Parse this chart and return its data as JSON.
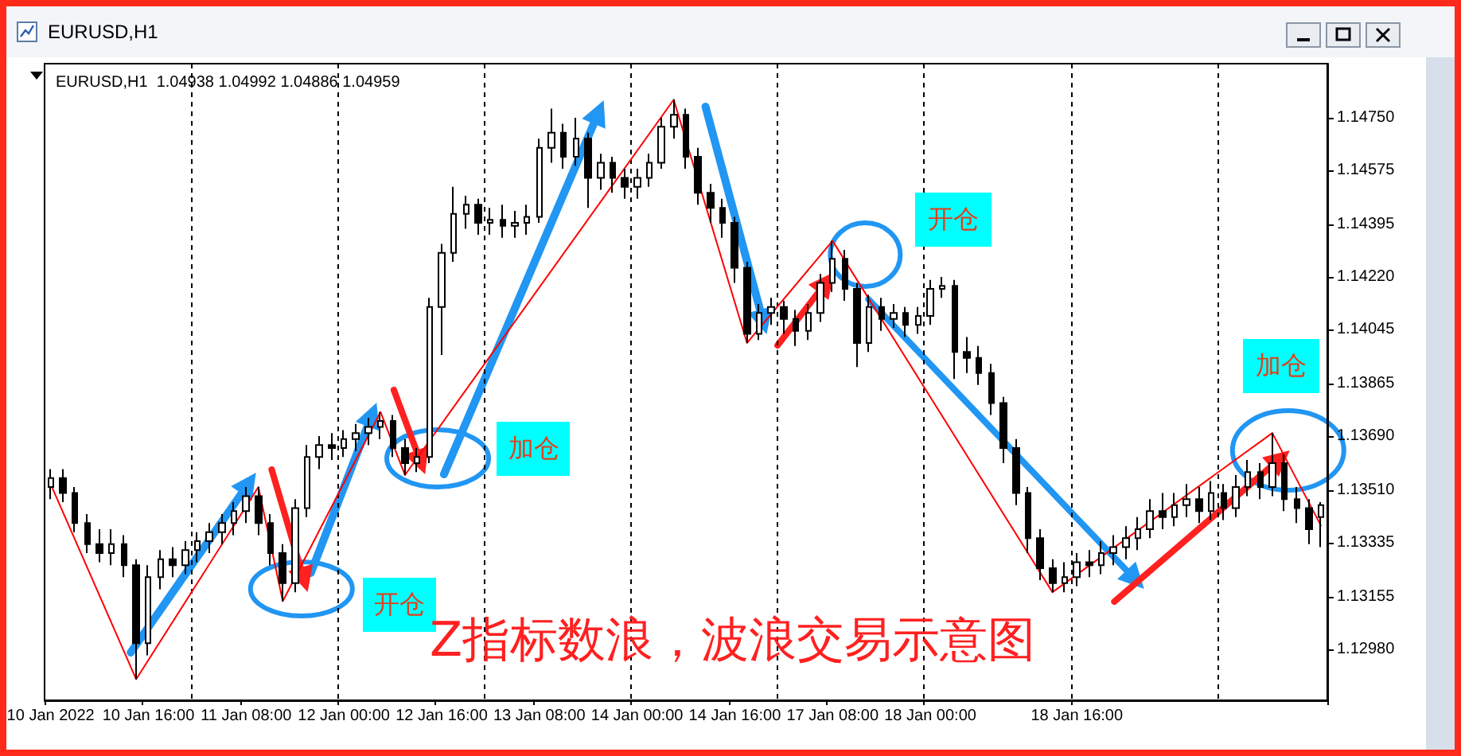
{
  "chart_data": {
    "type": "candlestick",
    "title": "EURUSD,H1",
    "subtitle": "EURUSD,H1  1.04938 1.04992 1.04886 1.04959",
    "categories": [
      "10 Jan 2022",
      null,
      null,
      null,
      null,
      null,
      null,
      null,
      "10 Jan 16:00",
      null,
      null,
      null,
      null,
      null,
      null,
      null,
      "11 Jan 08:00",
      null,
      null,
      null,
      null,
      null,
      null,
      null,
      "12 Jan 00:00",
      null,
      null,
      null,
      null,
      null,
      null,
      null,
      "12 Jan 16:00",
      null,
      null,
      null,
      null,
      null,
      null,
      null,
      "13 Jan 08:00",
      null,
      null,
      null,
      null,
      null,
      null,
      null,
      "14 Jan 00:00",
      null,
      null,
      null,
      null,
      null,
      null,
      null,
      "14 Jan 16:00",
      null,
      null,
      null,
      null,
      null,
      null,
      null,
      "17 Jan 08:00",
      null,
      null,
      null,
      null,
      null,
      null,
      null,
      "18 Jan 00:00",
      null,
      null,
      null,
      null,
      null,
      null,
      null,
      null,
      null,
      null,
      null,
      "18 Jan 16:00",
      null,
      null,
      null,
      null,
      null,
      null,
      null,
      null,
      null,
      null,
      null,
      null,
      null,
      null,
      null,
      null,
      null,
      null,
      null,
      null
    ],
    "ohlc": [
      [
        1.1352,
        1.1358,
        1.1348,
        1.1355
      ],
      [
        1.1355,
        1.1358,
        1.1347,
        1.135
      ],
      [
        1.135,
        1.1352,
        1.1337,
        1.134
      ],
      [
        1.134,
        1.1343,
        1.133,
        1.1333
      ],
      [
        1.1333,
        1.1338,
        1.1327,
        1.133
      ],
      [
        1.133,
        1.1338,
        1.1326,
        1.1333
      ],
      [
        1.1333,
        1.1336,
        1.1322,
        1.1326
      ],
      [
        1.1326,
        1.1328,
        1.1288,
        1.13
      ],
      [
        1.13,
        1.1326,
        1.1296,
        1.1322
      ],
      [
        1.1322,
        1.1331,
        1.1318,
        1.1328
      ],
      [
        1.1328,
        1.1332,
        1.1322,
        1.1326
      ],
      [
        1.1326,
        1.1334,
        1.1323,
        1.1331
      ],
      [
        1.1331,
        1.1337,
        1.1327,
        1.1334
      ],
      [
        1.1334,
        1.134,
        1.133,
        1.1337
      ],
      [
        1.1337,
        1.1343,
        1.1333,
        1.134
      ],
      [
        1.134,
        1.1347,
        1.1336,
        1.1344
      ],
      [
        1.1344,
        1.1352,
        1.134,
        1.1349
      ],
      [
        1.1349,
        1.1352,
        1.1336,
        1.134
      ],
      [
        1.134,
        1.1343,
        1.1326,
        1.133
      ],
      [
        1.133,
        1.1333,
        1.1314,
        1.132
      ],
      [
        1.132,
        1.1348,
        1.1317,
        1.1345
      ],
      [
        1.1345,
        1.1366,
        1.1342,
        1.1362
      ],
      [
        1.1362,
        1.1369,
        1.1358,
        1.1366
      ],
      [
        1.1366,
        1.137,
        1.1361,
        1.1365
      ],
      [
        1.1365,
        1.1371,
        1.1362,
        1.1368
      ],
      [
        1.1368,
        1.1373,
        1.1364,
        1.137
      ],
      [
        1.137,
        1.1375,
        1.1366,
        1.1372
      ],
      [
        1.1372,
        1.1377,
        1.1368,
        1.1374
      ],
      [
        1.1374,
        1.1376,
        1.1362,
        1.1365
      ],
      [
        1.1365,
        1.1368,
        1.1356,
        1.136
      ],
      [
        1.136,
        1.1365,
        1.1357,
        1.1362
      ],
      [
        1.1362,
        1.1415,
        1.136,
        1.1412
      ],
      [
        1.1412,
        1.1433,
        1.1396,
        1.143
      ],
      [
        1.143,
        1.1452,
        1.1427,
        1.1443
      ],
      [
        1.1443,
        1.1449,
        1.1438,
        1.1446
      ],
      [
        1.1446,
        1.1448,
        1.1436,
        1.144
      ],
      [
        1.144,
        1.1445,
        1.1436,
        1.1441
      ],
      [
        1.1441,
        1.1446,
        1.1435,
        1.1439
      ],
      [
        1.1439,
        1.1444,
        1.1435,
        1.144
      ],
      [
        1.144,
        1.1446,
        1.1436,
        1.1442
      ],
      [
        1.1442,
        1.1468,
        1.144,
        1.1465
      ],
      [
        1.1465,
        1.1478,
        1.146,
        1.147
      ],
      [
        1.147,
        1.1473,
        1.1458,
        1.1462
      ],
      [
        1.1462,
        1.1475,
        1.1459,
        1.1468
      ],
      [
        1.1468,
        1.147,
        1.1445,
        1.1455
      ],
      [
        1.1455,
        1.1463,
        1.1451,
        1.146
      ],
      [
        1.146,
        1.1462,
        1.145,
        1.1455
      ],
      [
        1.1455,
        1.1458,
        1.1448,
        1.1452
      ],
      [
        1.1452,
        1.1458,
        1.1448,
        1.1455
      ],
      [
        1.1455,
        1.1463,
        1.1452,
        1.146
      ],
      [
        1.146,
        1.1475,
        1.1458,
        1.1472
      ],
      [
        1.1472,
        1.1481,
        1.1468,
        1.1476
      ],
      [
        1.1476,
        1.1478,
        1.1458,
        1.1462
      ],
      [
        1.1462,
        1.1465,
        1.1446,
        1.145
      ],
      [
        1.145,
        1.1453,
        1.144,
        1.1445
      ],
      [
        1.1445,
        1.1448,
        1.1435,
        1.144
      ],
      [
        1.144,
        1.1442,
        1.142,
        1.1425
      ],
      [
        1.1425,
        1.1427,
        1.14,
        1.1403
      ],
      [
        1.1403,
        1.1413,
        1.1401,
        1.141
      ],
      [
        1.141,
        1.1415,
        1.1406,
        1.1412
      ],
      [
        1.1412,
        1.1414,
        1.1403,
        1.1408
      ],
      [
        1.1408,
        1.1411,
        1.1399,
        1.1404
      ],
      [
        1.1404,
        1.1413,
        1.1401,
        1.141
      ],
      [
        1.141,
        1.1423,
        1.1407,
        1.142
      ],
      [
        1.142,
        1.1434,
        1.1417,
        1.1428
      ],
      [
        1.1428,
        1.1431,
        1.1414,
        1.1418
      ],
      [
        1.1418,
        1.142,
        1.1392,
        1.14
      ],
      [
        1.14,
        1.1416,
        1.1397,
        1.1412
      ],
      [
        1.1412,
        1.1415,
        1.1404,
        1.1408
      ],
      [
        1.1408,
        1.1413,
        1.1405,
        1.141
      ],
      [
        1.141,
        1.1412,
        1.1402,
        1.1406
      ],
      [
        1.1406,
        1.1412,
        1.1403,
        1.1409
      ],
      [
        1.1409,
        1.1421,
        1.1406,
        1.1418
      ],
      [
        1.1418,
        1.1422,
        1.1415,
        1.1419
      ],
      [
        1.1419,
        1.1421,
        1.1388,
        1.1397
      ],
      [
        1.1397,
        1.1402,
        1.139,
        1.1395
      ],
      [
        1.1395,
        1.1399,
        1.1386,
        1.139
      ],
      [
        1.139,
        1.1393,
        1.1376,
        1.138
      ],
      [
        1.138,
        1.1382,
        1.136,
        1.1365
      ],
      [
        1.1365,
        1.1368,
        1.1346,
        1.135
      ],
      [
        1.135,
        1.1352,
        1.133,
        1.1335
      ],
      [
        1.1335,
        1.1338,
        1.1321,
        1.1325
      ],
      [
        1.1325,
        1.1328,
        1.1317,
        1.132
      ],
      [
        1.132,
        1.1327,
        1.1317,
        1.1322
      ],
      [
        1.1322,
        1.133,
        1.1319,
        1.1327
      ],
      [
        1.1327,
        1.1331,
        1.1322,
        1.1326
      ],
      [
        1.1326,
        1.1334,
        1.1323,
        1.133
      ],
      [
        1.133,
        1.1336,
        1.1326,
        1.1332
      ],
      [
        1.1332,
        1.1339,
        1.1328,
        1.1335
      ],
      [
        1.1335,
        1.1342,
        1.1331,
        1.1338
      ],
      [
        1.1338,
        1.1348,
        1.1335,
        1.1344
      ],
      [
        1.1344,
        1.135,
        1.1338,
        1.1342
      ],
      [
        1.1342,
        1.135,
        1.1339,
        1.1346
      ],
      [
        1.1346,
        1.1353,
        1.1342,
        1.1348
      ],
      [
        1.1348,
        1.1352,
        1.134,
        1.1344
      ],
      [
        1.1344,
        1.1354,
        1.1341,
        1.135
      ],
      [
        1.135,
        1.1353,
        1.1341,
        1.1345
      ],
      [
        1.1345,
        1.1356,
        1.1342,
        1.1352
      ],
      [
        1.1352,
        1.1361,
        1.1349,
        1.1357
      ],
      [
        1.1357,
        1.136,
        1.1348,
        1.1352
      ],
      [
        1.1352,
        1.137,
        1.1349,
        1.136
      ],
      [
        1.136,
        1.1363,
        1.1344,
        1.1348
      ],
      [
        1.1348,
        1.1352,
        1.134,
        1.1345
      ],
      [
        1.1345,
        1.1348,
        1.1333,
        1.1338
      ],
      [
        1.1342,
        1.1347,
        1.1332,
        1.1346
      ]
    ],
    "series": [
      {
        "type": "line",
        "color": "#ff0000",
        "values": [
          1.1353,
          null,
          null,
          null,
          null,
          null,
          null,
          1.1288,
          null,
          null,
          null,
          null,
          null,
          null,
          null,
          null,
          null,
          1.1352,
          null,
          1.1314,
          null,
          null,
          null,
          null,
          null,
          null,
          null,
          1.1377,
          null,
          1.1356,
          null,
          null,
          null,
          null,
          null,
          null,
          null,
          null,
          null,
          null,
          null,
          null,
          null,
          null,
          null,
          null,
          null,
          null,
          null,
          null,
          null,
          1.1481,
          null,
          null,
          null,
          null,
          null,
          1.14,
          null,
          null,
          null,
          null,
          null,
          null,
          1.1434,
          null,
          null,
          null,
          null,
          null,
          null,
          null,
          null,
          null,
          null,
          null,
          null,
          null,
          null,
          null,
          null,
          null,
          1.1317,
          null,
          null,
          null,
          null,
          null,
          null,
          null,
          null,
          null,
          null,
          null,
          null,
          null,
          null,
          null,
          null,
          null,
          1.137,
          null,
          null,
          null,
          1.1339
        ]
      }
    ],
    "ylim": [
      1.1281,
      1.1493
    ],
    "yticks": [
      {
        "value": 1.1475,
        "label": "1.14750"
      },
      {
        "value": 1.14575,
        "label": "1.14575"
      },
      {
        "value": 1.14395,
        "label": "1.14395"
      },
      {
        "value": 1.1422,
        "label": "1.14220"
      },
      {
        "value": 1.14045,
        "label": "1.14045"
      },
      {
        "value": 1.13865,
        "label": "1.13865"
      },
      {
        "value": 1.1369,
        "label": "1.13690"
      },
      {
        "value": 1.1351,
        "label": "1.13510"
      },
      {
        "value": 1.13335,
        "label": "1.13335"
      },
      {
        "value": 1.13155,
        "label": "1.13155"
      },
      {
        "value": 1.1298,
        "label": "1.12980"
      }
    ],
    "grid": "x",
    "annotations": [
      "开仓",
      "加仓",
      "开仓",
      "加仓",
      "Z指标数浪，波浪交易示意图"
    ]
  }
}
